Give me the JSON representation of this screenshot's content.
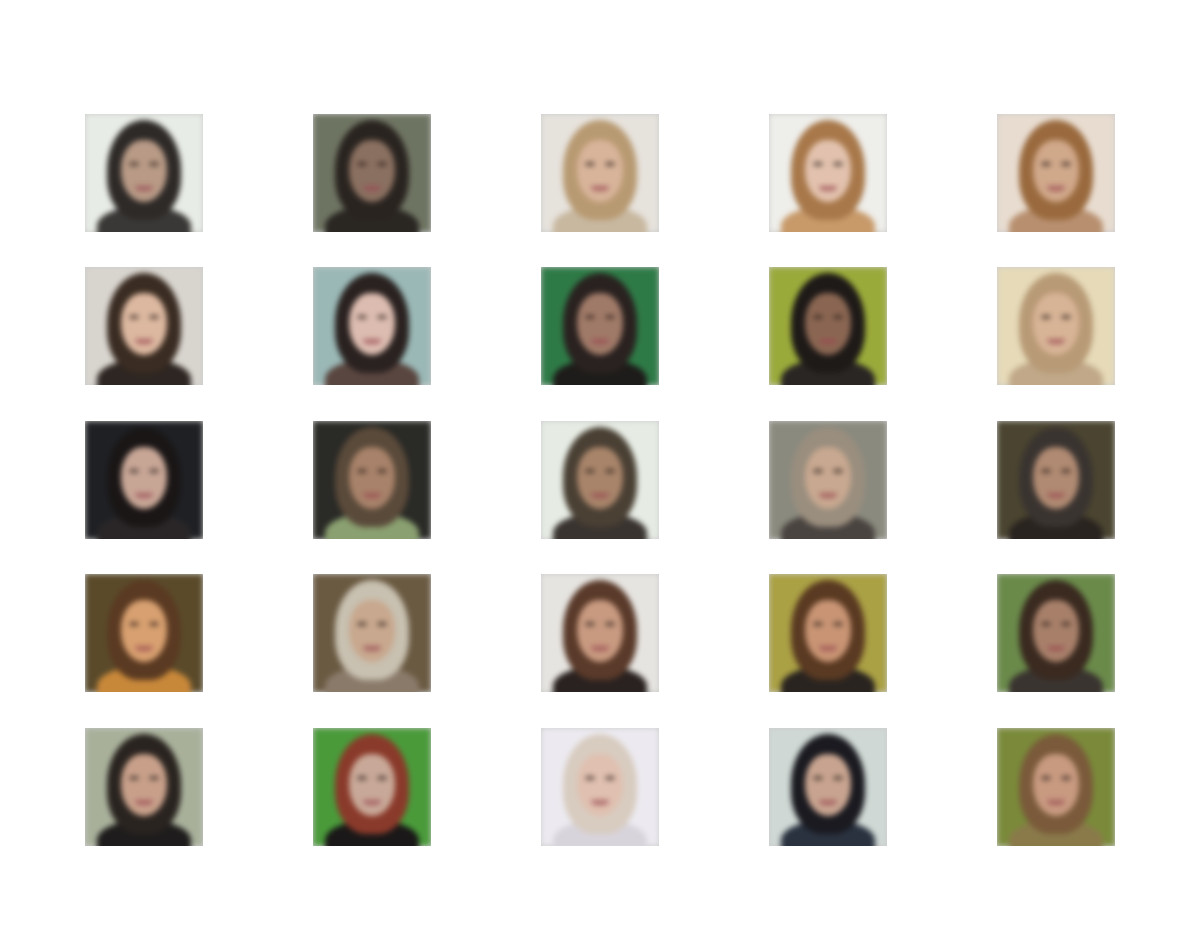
{
  "grid": {
    "rows": 5,
    "cols": 5
  },
  "tiles": [
    {
      "bg": "#e8ece6",
      "hair": "#2e2a28",
      "skin": "#b89a86",
      "clothes": "#3a3836"
    },
    {
      "bg": "#6e7462",
      "hair": "#2a2420",
      "skin": "#8a7060",
      "clothes": "#2a2622"
    },
    {
      "bg": "#e6e2dc",
      "hair": "#b89a72",
      "skin": "#d8b49a",
      "clothes": "#c8b8a0"
    },
    {
      "bg": "#eeeeea",
      "hair": "#a8784a",
      "skin": "#e2c2ae",
      "clothes": "#c89a6a"
    },
    {
      "bg": "#e8dcd0",
      "hair": "#9a6a3e",
      "skin": "#d0a88a",
      "clothes": "#b89070"
    },
    {
      "bg": "#d8d4ce",
      "hair": "#3a2c22",
      "skin": "#dcb8a0",
      "clothes": "#2e2622"
    },
    {
      "bg": "#9ab8b6",
      "hair": "#2a2220",
      "skin": "#dcbcb0",
      "clothes": "#5a4640"
    },
    {
      "bg": "#2e7a46",
      "hair": "#2a2220",
      "skin": "#a07a68",
      "clothes": "#1e1c1a"
    },
    {
      "bg": "#9aaa3a",
      "hair": "#1e1a18",
      "skin": "#8a6652",
      "clothes": "#2a2624"
    },
    {
      "bg": "#e6dab8",
      "hair": "#b89a76",
      "skin": "#d8b496",
      "clothes": "#c0a888"
    },
    {
      "bg": "#1e2024",
      "hair": "#1a1616",
      "skin": "#c8a696",
      "clothes": "#2a2628"
    },
    {
      "bg": "#2a2a26",
      "hair": "#5a4a3a",
      "skin": "#a8826a",
      "clothes": "#8aa070"
    },
    {
      "bg": "#e6ece4",
      "hair": "#4a4034",
      "skin": "#a8846a",
      "clothes": "#3a3430"
    },
    {
      "bg": "#8a8a7e",
      "hair": "#9a8e7e",
      "skin": "#c8a890",
      "clothes": "#4a4440"
    },
    {
      "bg": "#4a4430",
      "hair": "#3a3430",
      "skin": "#b08a72",
      "clothes": "#2a2420"
    },
    {
      "bg": "#5a4a2a",
      "hair": "#5a3a22",
      "skin": "#d8a070",
      "clothes": "#c8883a"
    },
    {
      "bg": "#6a5a42",
      "hair": "#c8c0b0",
      "skin": "#c8a88e",
      "clothes": "#8a7a6a"
    },
    {
      "bg": "#e6e4e0",
      "hair": "#5a3a2a",
      "skin": "#c89a80",
      "clothes": "#2a2220"
    },
    {
      "bg": "#aaa044",
      "hair": "#5a3a22",
      "skin": "#c89474",
      "clothes": "#2a2420"
    },
    {
      "bg": "#6a8a4a",
      "hair": "#3a2a20",
      "skin": "#a8806a",
      "clothes": "#3a3430"
    },
    {
      "bg": "#a8b09a",
      "hair": "#2a2420",
      "skin": "#c8a08a",
      "clothes": "#1e1c1c"
    },
    {
      "bg": "#4a9a3a",
      "hair": "#8a3a2a",
      "skin": "#c8a898",
      "clothes": "#1a1818"
    },
    {
      "bg": "#eceaf0",
      "hair": "#d8ccc0",
      "skin": "#e0c0b0",
      "clothes": "#d8d4dc"
    },
    {
      "bg": "#cfd8d4",
      "hair": "#1a1a20",
      "skin": "#c8a490",
      "clothes": "#2a3240"
    },
    {
      "bg": "#7a8a3a",
      "hair": "#7a5a3a",
      "skin": "#c89a80",
      "clothes": "#8a7a4a"
    }
  ]
}
